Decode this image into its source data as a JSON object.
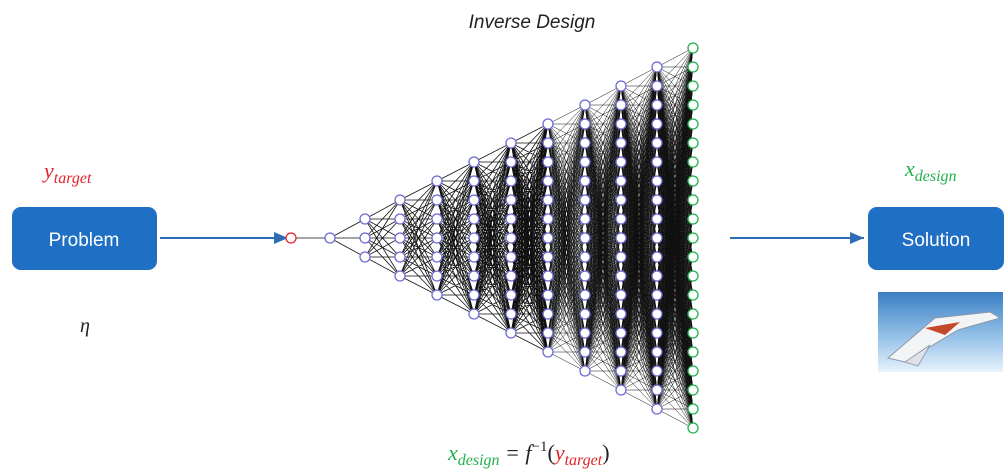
{
  "title": "Inverse Design",
  "input_label": {
    "base": "y",
    "sub": "target"
  },
  "problem": "Problem",
  "eta": "η",
  "output_label": {
    "base": "x",
    "sub": "design"
  },
  "solution": "Solution",
  "formula": {
    "lhs_base": "x",
    "lhs_sub": "design",
    "middle": " = f",
    "sup": "−1",
    "open": "(",
    "rhs_base": "y",
    "rhs_sub": "target",
    "close": ")"
  }
}
